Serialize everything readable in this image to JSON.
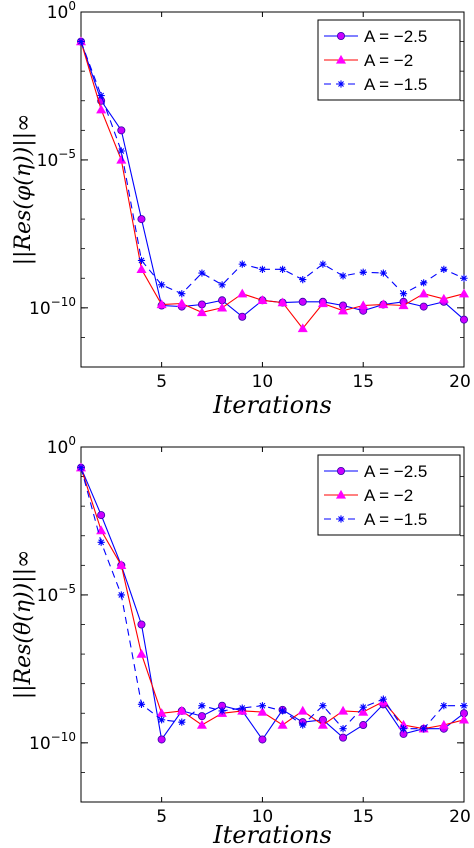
{
  "chart_data": [
    {
      "type": "line",
      "xlabel": "Iterations",
      "ylabel": "||Res(φ(η))||∞",
      "xlim": [
        1,
        20
      ],
      "ylim_log10": [
        -12,
        0
      ],
      "y_scale": "log",
      "x_ticks": [
        5,
        10,
        15,
        20
      ],
      "y_ticks": [
        {
          "value_log10": 0,
          "label": "10",
          "exp": "0"
        },
        {
          "value_log10": -5,
          "label": "10",
          "exp": "-5"
        },
        {
          "value_log10": -10,
          "label": "10",
          "exp": "-10"
        }
      ],
      "legend_position": "top-right",
      "series": [
        {
          "name": "A = −2.5",
          "color": "#0000ff",
          "marker": "circle",
          "marker_color": "#cc00ff",
          "dash": "solid",
          "x": [
            1,
            2,
            3,
            4,
            5,
            6,
            7,
            8,
            9,
            10,
            11,
            12,
            13,
            14,
            15,
            16,
            17,
            18,
            19,
            20
          ],
          "y": [
            0.1,
            0.001,
            0.0001,
            1e-07,
            1.2e-10,
            1.1e-10,
            1.3e-10,
            1.8e-10,
            5e-11,
            1.8e-10,
            1.5e-10,
            1.6e-10,
            1.6e-10,
            1.2e-10,
            8e-11,
            1.3e-10,
            1.6e-10,
            1.1e-10,
            1.6e-10,
            4e-11
          ]
        },
        {
          "name": "A =   −2",
          "color": "#ff0000",
          "marker": "triangle",
          "marker_color": "#ff00ff",
          "dash": "solid",
          "x": [
            1,
            2,
            3,
            4,
            5,
            6,
            7,
            8,
            9,
            10,
            11,
            12,
            13,
            14,
            15,
            16,
            17,
            18,
            19,
            20
          ],
          "y": [
            0.1,
            0.0005,
            1e-05,
            2e-09,
            1.3e-10,
            1.4e-10,
            7e-11,
            1e-10,
            3e-10,
            1.8e-10,
            1.5e-10,
            2e-11,
            1.4e-10,
            8e-11,
            1.2e-10,
            1.3e-10,
            1.2e-10,
            3e-10,
            2e-10,
            3e-10
          ]
        },
        {
          "name": "A = −1.5",
          "color": "#0000ff",
          "marker": "star",
          "marker_color": "#0000ff",
          "dash": "dashed",
          "x": [
            1,
            2,
            3,
            4,
            5,
            6,
            7,
            8,
            9,
            10,
            11,
            12,
            13,
            14,
            15,
            16,
            17,
            18,
            19,
            20
          ],
          "y": [
            0.1,
            0.0015,
            2e-05,
            4e-09,
            6e-10,
            3e-10,
            1.5e-09,
            6e-10,
            3e-09,
            2e-09,
            2e-09,
            9e-10,
            3e-09,
            1.2e-09,
            1.6e-09,
            1.5e-09,
            3e-10,
            7e-10,
            2e-09,
            1e-09
          ]
        }
      ]
    },
    {
      "type": "line",
      "xlabel": "Iterations",
      "ylabel": "||Res(θ(η))||∞",
      "xlim": [
        1,
        20
      ],
      "ylim_log10": [
        -12,
        0
      ],
      "y_scale": "log",
      "x_ticks": [
        5,
        10,
        15,
        20
      ],
      "y_ticks": [
        {
          "value_log10": 0,
          "label": "10",
          "exp": "0"
        },
        {
          "value_log10": -5,
          "label": "10",
          "exp": "-5"
        },
        {
          "value_log10": -10,
          "label": "10",
          "exp": "-10"
        }
      ],
      "legend_position": "top-right",
      "series": [
        {
          "name": "A = −2.5",
          "color": "#0000ff",
          "marker": "circle",
          "marker_color": "#cc00ff",
          "dash": "solid",
          "x": [
            1,
            2,
            3,
            4,
            5,
            6,
            7,
            8,
            9,
            10,
            11,
            12,
            13,
            14,
            15,
            16,
            17,
            18,
            19,
            20
          ],
          "y": [
            0.2,
            0.005,
            0.0001,
            1e-06,
            1.3e-10,
            1.2e-09,
            8e-10,
            1.8e-09,
            1.2e-09,
            1.3e-10,
            1.3e-09,
            5e-10,
            6e-10,
            1.5e-10,
            4e-10,
            2e-09,
            2e-10,
            3e-10,
            3e-10,
            1e-09
          ]
        },
        {
          "name": "A =   −2",
          "color": "#ff0000",
          "marker": "triangle",
          "marker_color": "#ff00ff",
          "dash": "solid",
          "x": [
            1,
            2,
            3,
            4,
            5,
            6,
            7,
            8,
            9,
            10,
            11,
            12,
            13,
            14,
            15,
            16,
            17,
            18,
            19,
            20
          ],
          "y": [
            0.2,
            0.0015,
            0.0001,
            1e-07,
            1e-09,
            1.2e-09,
            4e-10,
            1e-09,
            1.2e-09,
            1.1e-09,
            4e-10,
            1.2e-09,
            4e-10,
            1.2e-09,
            1.1e-09,
            2.5e-09,
            4e-10,
            3e-10,
            4e-10,
            6e-10
          ]
        },
        {
          "name": "A = −1.5",
          "color": "#0000ff",
          "marker": "star",
          "marker_color": "#0000ff",
          "dash": "dashed",
          "x": [
            1,
            2,
            3,
            4,
            5,
            6,
            7,
            8,
            9,
            10,
            11,
            12,
            13,
            14,
            15,
            16,
            17,
            18,
            19,
            20
          ],
          "y": [
            0.2,
            0.0006,
            1e-05,
            2e-09,
            6e-10,
            5e-10,
            1.8e-09,
            1.2e-09,
            1.5e-09,
            1.8e-09,
            1.2e-09,
            4e-10,
            1.8e-09,
            3e-10,
            1.6e-09,
            3e-09,
            3e-10,
            3e-10,
            1.8e-09,
            1.8e-09
          ]
        }
      ]
    }
  ]
}
